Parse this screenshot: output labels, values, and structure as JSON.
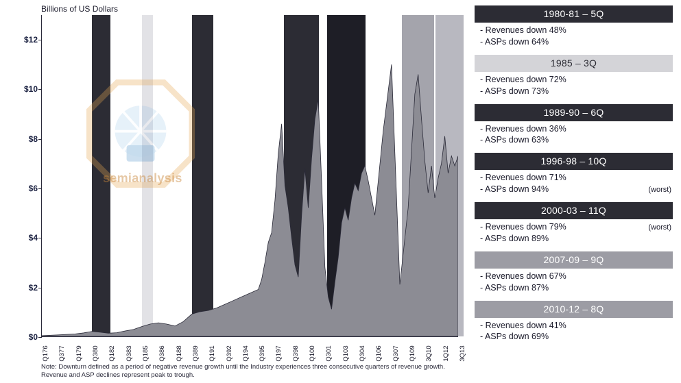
{
  "chart": {
    "title": "Billions of US Dollars",
    "type": "area",
    "background_color": "#ffffff",
    "area_fill": "#8c8c94",
    "area_stroke": "#2a2a38",
    "axis_color": "#2a2a3a",
    "title_fontsize": 12,
    "tick_fontsize": 12,
    "xlabel_fontsize": 9.5,
    "note_fontsize": 9.5,
    "ylim": [
      0,
      13
    ],
    "ytick_step": 2,
    "ytick_prefix": "$",
    "yticks": [
      0,
      2,
      4,
      6,
      8,
      10,
      12
    ],
    "x_categories": [
      "Q176",
      "Q377",
      "Q179",
      "Q380",
      "Q182",
      "Q383",
      "Q185",
      "Q386",
      "Q188",
      "Q389",
      "Q191",
      "Q392",
      "Q194",
      "Q395",
      "Q197",
      "Q398",
      "Q100",
      "Q301",
      "Q103",
      "Q304",
      "Q106",
      "Q307",
      "Q109",
      "3Q10",
      "1Q12",
      "3Q13"
    ],
    "series_values": [
      0.05,
      0.08,
      0.12,
      0.22,
      0.15,
      0.18,
      0.32,
      0.55,
      0.45,
      0.95,
      1.05,
      1.3,
      1.6,
      1.9,
      4.2,
      8.6,
      2.4,
      5.2,
      1.1,
      4.8,
      6.0,
      6.3,
      2.1,
      10.6,
      5.8,
      7.3
    ],
    "series_dense_x": [
      0,
      1,
      2,
      2.5,
      3,
      3.5,
      4,
      4.5,
      5,
      5.5,
      6,
      6.5,
      7,
      7.5,
      8,
      8.5,
      9,
      9.5,
      10,
      10.5,
      11,
      11.5,
      12,
      12.5,
      13,
      13.2,
      13.4,
      13.6,
      13.8,
      14,
      14.2,
      14.4,
      14.6,
      14.8,
      15,
      15.2,
      15.4,
      15.6,
      15.8,
      16,
      16.2,
      16.4,
      16.6,
      16.8,
      17,
      17.2,
      17.4,
      17.6,
      17.8,
      18,
      18.2,
      18.4,
      18.6,
      18.8,
      19,
      19.2,
      19.4,
      19.6,
      20,
      20.5,
      21,
      21.5,
      22,
      22.2,
      22.4,
      22.6,
      22.8,
      23,
      23.2,
      23.4,
      23.6,
      23.8,
      24,
      24.2,
      24.4,
      24.6,
      24.8,
      25
    ],
    "series_dense_y": [
      0.03,
      0.06,
      0.1,
      0.14,
      0.2,
      0.17,
      0.13,
      0.15,
      0.22,
      0.28,
      0.4,
      0.5,
      0.55,
      0.5,
      0.42,
      0.6,
      0.9,
      1.0,
      1.05,
      1.15,
      1.3,
      1.45,
      1.6,
      1.75,
      1.9,
      2.3,
      3.0,
      3.8,
      4.2,
      5.5,
      7.4,
      8.6,
      6.1,
      5.2,
      4.0,
      2.9,
      2.4,
      4.9,
      6.8,
      5.2,
      7.2,
      8.8,
      9.6,
      6.3,
      2.8,
      1.6,
      1.1,
      2.2,
      3.2,
      4.6,
      5.2,
      4.7,
      5.6,
      6.2,
      5.9,
      6.6,
      6.9,
      6.3,
      4.9,
      8.3,
      11.0,
      2.1,
      5.2,
      7.5,
      9.8,
      10.6,
      8.8,
      7.1,
      5.8,
      6.9,
      5.6,
      6.4,
      7.0,
      8.1,
      6.6,
      7.3,
      6.9,
      7.3
    ],
    "downturns": [
      {
        "label": "1980-81",
        "x_index": 3,
        "width_q": 1.1,
        "color": "#2c2c34"
      },
      {
        "label": "1985",
        "x_index": 6,
        "width_q": 0.65,
        "color": "#e2e2e6"
      },
      {
        "label": "1989-90",
        "x_index": 9,
        "width_q": 1.3,
        "color": "#2c2c34"
      },
      {
        "label": "1996-98",
        "x_index": 14.5,
        "width_q": 2.1,
        "color": "#2c2c34"
      },
      {
        "label": "2000-03",
        "x_index": 17.1,
        "width_q": 2.3,
        "color": "#1e1e26"
      },
      {
        "label": "2007-09",
        "x_index": 21.6,
        "width_q": 1.9,
        "color": "#a4a4ac"
      },
      {
        "label": "2010-12",
        "x_index": 23.6,
        "width_q": 1.7,
        "color": "#b8b8c0"
      }
    ]
  },
  "note": "Note: Downturn defined as a period of negative revenue growth until the Industry experiences three consecutive quarters of revenue growth. Revenue and ASP declines represent peak to trough.",
  "watermark": {
    "text": "semianalysis",
    "ring_color": "#e8a752",
    "inner_color": "#7fb6e0"
  },
  "sidebar": {
    "head_fontsize": 14,
    "line_fontsize": 12.5,
    "items": [
      {
        "head": "1980-81  –  5Q",
        "shade": "dark",
        "lines": [
          "Revenues down 48%",
          "ASPs down 64%"
        ],
        "tag": ""
      },
      {
        "head": "1985  –  3Q",
        "shade": "light",
        "lines": [
          "Revenues down 72%",
          "ASPs down 73%"
        ],
        "tag": ""
      },
      {
        "head": "1989-90  –  6Q",
        "shade": "dark",
        "lines": [
          "Revenues down 36%",
          "ASPs down 63%"
        ],
        "tag": ""
      },
      {
        "head": "1996-98  –  10Q",
        "shade": "dark",
        "lines": [
          "Revenues down 71%",
          "ASPs down 94%"
        ],
        "tag": "(worst)"
      },
      {
        "head": "2000-03  –  11Q",
        "shade": "dark",
        "lines": [
          "Revenues down 79%",
          "ASPs down 89%"
        ],
        "tag": "(worst)"
      },
      {
        "head": "2007-09  –  9Q",
        "shade": "mid",
        "lines": [
          "Revenues down 67%",
          "ASPs down 87%"
        ],
        "tag": ""
      },
      {
        "head": "2010-12  –  8Q",
        "shade": "mid",
        "lines": [
          "Revenues down 41%",
          "ASPs down 69%"
        ],
        "tag": ""
      }
    ]
  }
}
